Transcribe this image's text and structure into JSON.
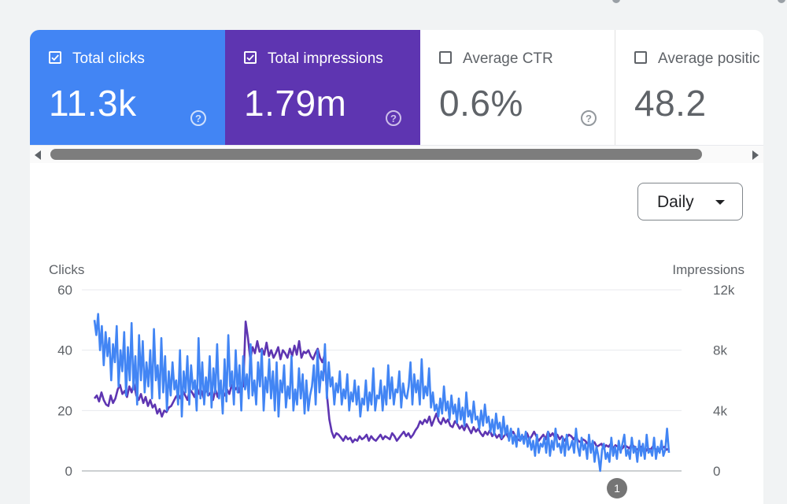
{
  "metrics": [
    {
      "label": "Total clicks",
      "value": "11.3k",
      "checked": true
    },
    {
      "label": "Total impressions",
      "value": "1.79m",
      "checked": true
    },
    {
      "label": "Average CTR",
      "value": "0.6%",
      "checked": false
    },
    {
      "label": "Average positic",
      "value": "48.2",
      "checked": false
    }
  ],
  "help_glyph": "?",
  "interval_select": {
    "value": "Daily"
  },
  "colors": {
    "clicks": "#4285f4",
    "impressions": "#5e35b1"
  },
  "chart_data": {
    "type": "line",
    "left_axis": {
      "label": "Clicks",
      "ticks": [
        "60",
        "40",
        "20",
        "0"
      ],
      "ylim": [
        0,
        60
      ]
    },
    "right_axis": {
      "label": "Impressions",
      "ticks": [
        "12k",
        "8k",
        "4k",
        "0"
      ],
      "ylim": [
        0,
        12000
      ]
    },
    "annotation": "1",
    "series": [
      {
        "key": "clicks",
        "axis": "left",
        "values": [
          50,
          45,
          52,
          40,
          48,
          35,
          46,
          38,
          44,
          30,
          42,
          36,
          48,
          28,
          40,
          33,
          46,
          25,
          41,
          30,
          49,
          27,
          38,
          22,
          45,
          30,
          43,
          26,
          36,
          28,
          40,
          24,
          47,
          30,
          35,
          24,
          44,
          26,
          38,
          20,
          33,
          25,
          36,
          27,
          30,
          22,
          40,
          18,
          33,
          26,
          38,
          22,
          35,
          27,
          30,
          20,
          44,
          24,
          36,
          22,
          31,
          25,
          38,
          21,
          34,
          26,
          42,
          24,
          30,
          19,
          37,
          23,
          45,
          28,
          33,
          22,
          40,
          26,
          35,
          20,
          38,
          27,
          32,
          24,
          42,
          25,
          30,
          22,
          36,
          28,
          40,
          20,
          31,
          26,
          37,
          24,
          33,
          20,
          36,
          18,
          30,
          26,
          35,
          21,
          28,
          24,
          38,
          20,
          27,
          22,
          34,
          24,
          32,
          19,
          30,
          20,
          25,
          28,
          35,
          22,
          40,
          26,
          33,
          30,
          42,
          24,
          36,
          28,
          31,
          22,
          29,
          26,
          33,
          22,
          27,
          24,
          32,
          20,
          26,
          23,
          30,
          22,
          28,
          18,
          24,
          22,
          30,
          20,
          26,
          22,
          34,
          20,
          25,
          24,
          30,
          20,
          28,
          22,
          35,
          24,
          31,
          22,
          27,
          26,
          33,
          21,
          29,
          25,
          24,
          28,
          36,
          22,
          32,
          26,
          30,
          22,
          37,
          24,
          28,
          25,
          34,
          21,
          26,
          20,
          22,
          18,
          24,
          19,
          28,
          20,
          23,
          17,
          25,
          19,
          22,
          16,
          24,
          17,
          21,
          15,
          26,
          18,
          20,
          16,
          23,
          17,
          18,
          14,
          20,
          15,
          22,
          16,
          18,
          13,
          17,
          12,
          19,
          14,
          16,
          11,
          18,
          12,
          15,
          10,
          14,
          9,
          12,
          8,
          14,
          10,
          12,
          9,
          13,
          8,
          11,
          7,
          10,
          5,
          12,
          6,
          9,
          8,
          11,
          6,
          13,
          5,
          10,
          7,
          14,
          8,
          9,
          6,
          11,
          5,
          12,
          7,
          8,
          10,
          6,
          14,
          8,
          5,
          11,
          7,
          9,
          4,
          12,
          6,
          10,
          3,
          8,
          5,
          0,
          7,
          9,
          4,
          6,
          3,
          11,
          5,
          8,
          4,
          10,
          6,
          9,
          12,
          5,
          7,
          4,
          11,
          6,
          8,
          3,
          10,
          5,
          9,
          4,
          12,
          6,
          7,
          5,
          11,
          4,
          8,
          6,
          10,
          5,
          7,
          14,
          6
        ]
      },
      {
        "key": "impressions",
        "axis": "right",
        "values": [
          4800,
          5000,
          4600,
          5200,
          4700,
          4400,
          4300,
          5000,
          4500,
          4800,
          5400,
          5700,
          5100,
          5300,
          4900,
          5600,
          5200,
          5800,
          5000,
          4700,
          5100,
          4500,
          4900,
          4300,
          4700,
          4200,
          4400,
          3800,
          4100,
          3600,
          4000,
          3900,
          4200,
          4300,
          4600,
          4900,
          5100,
          4800,
          5300,
          5000,
          4700,
          5400,
          5200,
          4900,
          5600,
          5100,
          5300,
          4800,
          5500,
          5000,
          5200,
          4700,
          5400,
          4900,
          5600,
          5200,
          5000,
          5400,
          5100,
          5700,
          5300,
          5500,
          5200,
          5800,
          5600,
          9900,
          8800,
          7400,
          8200,
          7800,
          8600,
          7900,
          8100,
          7700,
          8500,
          7600,
          8000,
          7500,
          7800,
          8200,
          7400,
          8000,
          7800,
          7500,
          8100,
          7600,
          8300,
          7700,
          8600,
          7500,
          7900,
          7800,
          8000,
          7600,
          7400,
          7800,
          8100,
          7500,
          7200,
          7700,
          5000,
          3400,
          2600,
          2200,
          2500,
          2400,
          2200,
          2000,
          2300,
          2100,
          2200,
          1900,
          2100,
          2000,
          2300,
          2100,
          2200,
          2400,
          2000,
          2300,
          2100,
          2000,
          2200,
          2400,
          2100,
          2300,
          2200,
          2100,
          2500,
          2300,
          2000,
          2200,
          2400,
          2600,
          2300,
          2500,
          2200,
          2400,
          2700,
          2900,
          3300,
          3100,
          3400,
          3200,
          3600,
          3000,
          3400,
          3800,
          3300,
          3100,
          3500,
          3200,
          3400,
          3000,
          2900,
          3300,
          3100,
          2800,
          3000,
          2700,
          3100,
          2800,
          2500,
          2900,
          2600,
          2800,
          2500,
          2300,
          2600,
          2400,
          2700,
          2300,
          2500,
          2200,
          2400,
          2100,
          2300,
          2500,
          2200,
          2400,
          2600,
          2300,
          2100,
          2000,
          2300,
          2200,
          2500,
          2100,
          2300,
          2600,
          2300,
          2000,
          2200,
          2400,
          2100,
          2600,
          2300,
          2500,
          2200,
          2400,
          2100,
          2300,
          2000,
          2200,
          2400,
          2300,
          2100,
          2300,
          2000,
          1900,
          2100,
          2000,
          1800,
          1700,
          1800,
          1900,
          1600,
          1700,
          1800,
          1500,
          1700,
          1600,
          1800,
          1500,
          1700,
          1600,
          1400,
          1500,
          1700,
          1600,
          1500,
          1800,
          1600,
          1400,
          1500,
          1600,
          1400,
          1300,
          1500,
          1400,
          1600,
          1500,
          1300,
          1400,
          1500,
          1600,
          1400,
          1500
        ]
      }
    ]
  }
}
